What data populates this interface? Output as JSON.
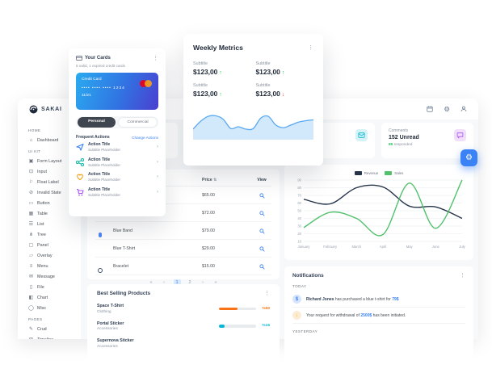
{
  "topbar": {
    "brand": "SAKAI",
    "icons": [
      "calendar-icon",
      "gear-icon",
      "user-icon"
    ]
  },
  "sidebar": {
    "sections": [
      {
        "label": "HOME",
        "items": [
          {
            "icon": "home-icon",
            "glyph": "⌂",
            "label": "Dashboard"
          }
        ]
      },
      {
        "label": "UI KIT",
        "items": [
          {
            "icon": "form-layout-icon",
            "glyph": "▣",
            "label": "Form Layout"
          },
          {
            "icon": "input-icon",
            "glyph": "⊡",
            "label": "Input"
          },
          {
            "icon": "float-label-icon",
            "glyph": "⚐",
            "label": "Float Label"
          },
          {
            "icon": "invalid-state-icon",
            "glyph": "⊘",
            "label": "Invalid State"
          },
          {
            "icon": "button-icon",
            "glyph": "▭",
            "label": "Button"
          },
          {
            "icon": "table-icon",
            "glyph": "▦",
            "label": "Table"
          },
          {
            "icon": "list-icon",
            "glyph": "☰",
            "label": "List"
          },
          {
            "icon": "tree-icon",
            "glyph": "⋔",
            "label": "Tree"
          },
          {
            "icon": "panel-icon",
            "glyph": "▢",
            "label": "Panel"
          },
          {
            "icon": "overlay-icon",
            "glyph": "▱",
            "label": "Overlay"
          },
          {
            "icon": "menu-icon",
            "glyph": "≡",
            "label": "Menu"
          },
          {
            "icon": "message-icon",
            "glyph": "✉",
            "label": "Message"
          },
          {
            "icon": "file-icon",
            "glyph": "▯",
            "label": "File"
          },
          {
            "icon": "chart-icon",
            "glyph": "◧",
            "label": "Chart"
          },
          {
            "icon": "misc-icon",
            "glyph": "◯",
            "label": "Misc"
          }
        ]
      },
      {
        "label": "PAGES",
        "items": [
          {
            "icon": "crud-icon",
            "glyph": "✎",
            "label": "Crud"
          },
          {
            "icon": "timeline-icon",
            "glyph": "⊞",
            "label": "Timeline"
          },
          {
            "icon": "empty-icon",
            "glyph": "◻",
            "label": "Empty"
          }
        ]
      }
    ]
  },
  "your_cards": {
    "title": "Your Cards",
    "subtitle": "5 valid, 1 expired credit cards",
    "credit_card": {
      "label": "Credit Card",
      "number": "•••• •••• •••• 1234",
      "expiry": "11/21"
    },
    "toggle": {
      "selected": "Personal",
      "other": "Commercial"
    },
    "frequent_actions_title": "Frequent Actions",
    "change_actions_label": "Change Actions",
    "actions": [
      {
        "icon": "send-icon",
        "color": "#3b82f6",
        "title": "Action Title",
        "subtitle": "Subtitle Placeholder"
      },
      {
        "icon": "share-icon",
        "color": "#14b8a6",
        "title": "Action Title",
        "subtitle": "Subtitle Placeholder"
      },
      {
        "icon": "heart-icon",
        "color": "#f59e0b",
        "title": "Action Title",
        "subtitle": "Subtitle Placeholder"
      },
      {
        "icon": "cart-icon",
        "color": "#a855f7",
        "title": "Action Title",
        "subtitle": "Subtitle Placeholder"
      }
    ]
  },
  "weekly_metrics": {
    "title": "Weekly Metrics",
    "metrics": [
      {
        "label": "Subtitle",
        "value": "$123,00",
        "trend": "up"
      },
      {
        "label": "Subtitle",
        "value": "$123,00",
        "trend": "up"
      },
      {
        "label": "Subtitle",
        "value": "$123,00",
        "trend": "up"
      },
      {
        "label": "Subtitle",
        "value": "$123,00",
        "trend": "down"
      }
    ]
  },
  "stat_cards": {
    "messages": {
      "icon": "envelope-icon",
      "icon_color": "#06b6d4",
      "icon_bg": "#d5f2f7"
    },
    "comments": {
      "title": "Comments",
      "value": "152 Unread",
      "sub_num": "85",
      "sub_text": "responded",
      "sub_num_color": "#22c55e",
      "icon": "comment-icon",
      "icon_color": "#a855f7",
      "icon_bg": "#f0deFA"
    }
  },
  "sales_table": {
    "headers": {
      "price": "Price",
      "sort_icon": "⇅",
      "view": "View"
    },
    "rows": [
      {
        "name": "",
        "price": "$65.00",
        "thumb": "plain"
      },
      {
        "name": "",
        "price": "$72.00",
        "thumb": "plain"
      },
      {
        "name": "Blue Band",
        "price": "$79.00",
        "thumb": "band"
      },
      {
        "name": "Blue T-Shirt",
        "price": "$29.00",
        "thumb": "tshirt"
      },
      {
        "name": "Bracelet",
        "price": "$15.00",
        "thumb": "bracelet"
      }
    ],
    "pagination": {
      "items": [
        "«",
        "‹",
        "1",
        "2",
        "›",
        "»"
      ],
      "active": "1"
    }
  },
  "notifications": {
    "title": "Notifications",
    "sections": [
      {
        "label": "TODAY",
        "items": [
          {
            "icon": "dollar-icon",
            "icon_color": "#3b82f6",
            "icon_bg": "#d6e4fd",
            "glyph": "$",
            "bold": "Richard Jones",
            "text": " has purchased a blue t-shirt for ",
            "amount": "79$",
            "tail": ""
          },
          {
            "icon": "withdraw-icon",
            "icon_color": "#f59e0b",
            "icon_bg": "#fdecd5",
            "glyph": "↓",
            "bold": "",
            "text": "Your request for withdrawal of ",
            "amount": "2500$",
            "tail": " has been initiated."
          }
        ]
      },
      {
        "label": "YESTERDAY",
        "items": []
      }
    ]
  },
  "best_selling": {
    "title": "Best Selling Products",
    "items": [
      {
        "name": "Space T-Shirt",
        "category": "Clothing",
        "pct": 50,
        "pct_label": "%50",
        "color": "#f97316"
      },
      {
        "name": "Portal Sticker",
        "category": "Accessories",
        "pct": 16,
        "pct_label": "%16",
        "color": "#06b6d4"
      },
      {
        "name": "Supernova Sticker",
        "category": "Accessories",
        "pct": null,
        "pct_label": "",
        "color": ""
      }
    ]
  },
  "chart_data": [
    {
      "type": "line",
      "title": "",
      "categories": [
        "January",
        "February",
        "March",
        "April",
        "May",
        "June",
        "July"
      ],
      "series": [
        {
          "name": "Revenue",
          "values": [
            65,
            59,
            80,
            81,
            56,
            55,
            40
          ],
          "color": "#263449"
        },
        {
          "name": "Sales",
          "values": [
            28,
            48,
            40,
            19,
            86,
            27,
            90
          ],
          "color": "#52c06c"
        }
      ],
      "ylim": [
        10,
        90
      ],
      "yticks": [
        10,
        20,
        30,
        40,
        50,
        60,
        70,
        80,
        90
      ],
      "grid": true,
      "legend_position": "top"
    },
    {
      "type": "area",
      "title": "Weekly Metrics sparkline",
      "values": [
        0.28,
        0.55,
        0.72,
        0.74,
        0.62,
        0.3,
        0.36,
        0.28,
        0.3,
        0.66,
        0.72,
        0.42,
        0.33,
        0.42,
        0.52,
        0.57,
        0.6
      ],
      "line_color": "#5aa9f2",
      "fill_color": "#d2e9fc"
    }
  ]
}
